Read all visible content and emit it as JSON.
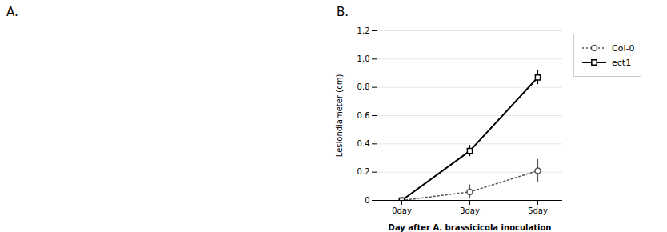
{
  "chart_data": {
    "type": "line",
    "title": "B.",
    "annotations": [
      "A."
    ],
    "xlabel": "Day after A. brassicicola inoculation",
    "ylabel": "Lesiondiameter (cm)",
    "categories": [
      "0day",
      "3day",
      "5day"
    ],
    "series": [
      {
        "name": "Col-0",
        "color": "#555555",
        "marker": "circle",
        "line_style": "dotted",
        "values": [
          0.0,
          0.06,
          0.21
        ],
        "errors": [
          0.0,
          0.05,
          0.08
        ]
      },
      {
        "name": "ect1",
        "color": "#000000",
        "marker": "square",
        "line_style": "solid",
        "values": [
          0.0,
          0.35,
          0.87
        ],
        "errors": [
          0.0,
          0.04,
          0.05
        ]
      }
    ],
    "ylim": [
      0,
      1.2
    ],
    "yticks": [
      0,
      0.2,
      0.4,
      0.6,
      0.8,
      {
        "value": 1.0,
        "label": "1.0"
      },
      1.2
    ],
    "grid": true,
    "legend": "right"
  }
}
